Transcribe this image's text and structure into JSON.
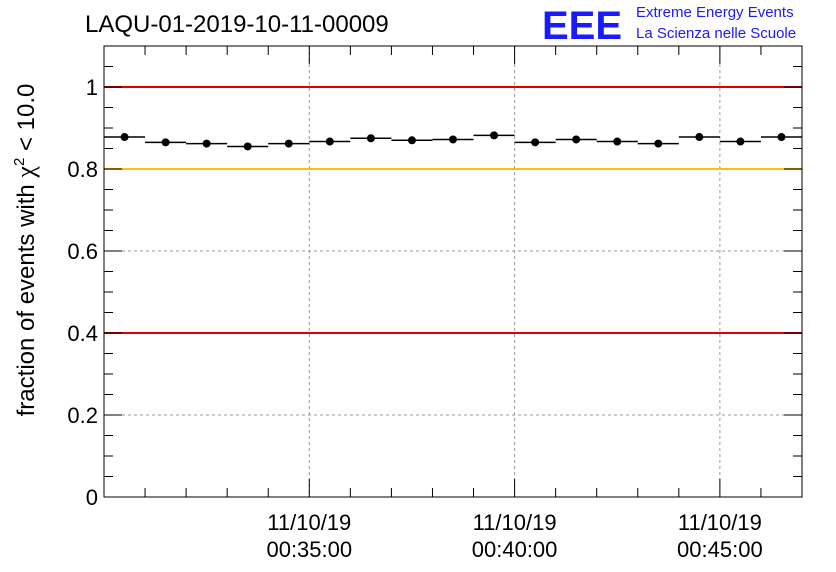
{
  "title": "LAQU-01-2019-10-11-00009",
  "logo": {
    "mark": "EEE",
    "line1": "Extreme Energy Events",
    "line2": "La Scienza nelle Scuole",
    "color": "#1a1aff"
  },
  "chart_data": {
    "type": "scatter",
    "title": "LAQU-01-2019-10-11-00009",
    "ylabel_prefix": "fraction of events with ",
    "ylabel_symbol": "χ",
    "ylabel_sup": "2",
    "ylabel_suffix": " < 10.0",
    "xlabel": "",
    "ylim": [
      0,
      1.1
    ],
    "xlim_minutes": [
      30.0,
      47.0
    ],
    "yticks": [
      "0",
      "0.2",
      "0.4",
      "0.6",
      "0.8",
      "1"
    ],
    "ytick_values": [
      0,
      0.2,
      0.4,
      0.6,
      0.8,
      1.0
    ],
    "xticks": [
      {
        "minute": 35,
        "date": "11/10/19",
        "time": "00:35:00"
      },
      {
        "minute": 40,
        "date": "11/10/19",
        "time": "00:40:00"
      },
      {
        "minute": 45,
        "date": "11/10/19",
        "time": "00:45:00"
      }
    ],
    "grid": true,
    "bin_width_minutes": 1.0,
    "points": [
      {
        "x": 30.5,
        "y": 0.878
      },
      {
        "x": 31.5,
        "y": 0.865
      },
      {
        "x": 32.5,
        "y": 0.862
      },
      {
        "x": 33.5,
        "y": 0.855
      },
      {
        "x": 34.5,
        "y": 0.862
      },
      {
        "x": 35.5,
        "y": 0.867
      },
      {
        "x": 36.5,
        "y": 0.875
      },
      {
        "x": 37.5,
        "y": 0.87
      },
      {
        "x": 38.5,
        "y": 0.872
      },
      {
        "x": 39.5,
        "y": 0.882
      },
      {
        "x": 40.5,
        "y": 0.865
      },
      {
        "x": 41.5,
        "y": 0.872
      },
      {
        "x": 42.5,
        "y": 0.867
      },
      {
        "x": 43.5,
        "y": 0.862
      },
      {
        "x": 44.5,
        "y": 0.878
      },
      {
        "x": 45.5,
        "y": 0.867
      },
      {
        "x": 46.5,
        "y": 0.878
      }
    ],
    "reference_lines": [
      {
        "y": 1.0,
        "color": "#e00000"
      },
      {
        "y": 0.8,
        "color": "#ffc000"
      },
      {
        "y": 0.4,
        "color": "#e00000"
      }
    ]
  }
}
